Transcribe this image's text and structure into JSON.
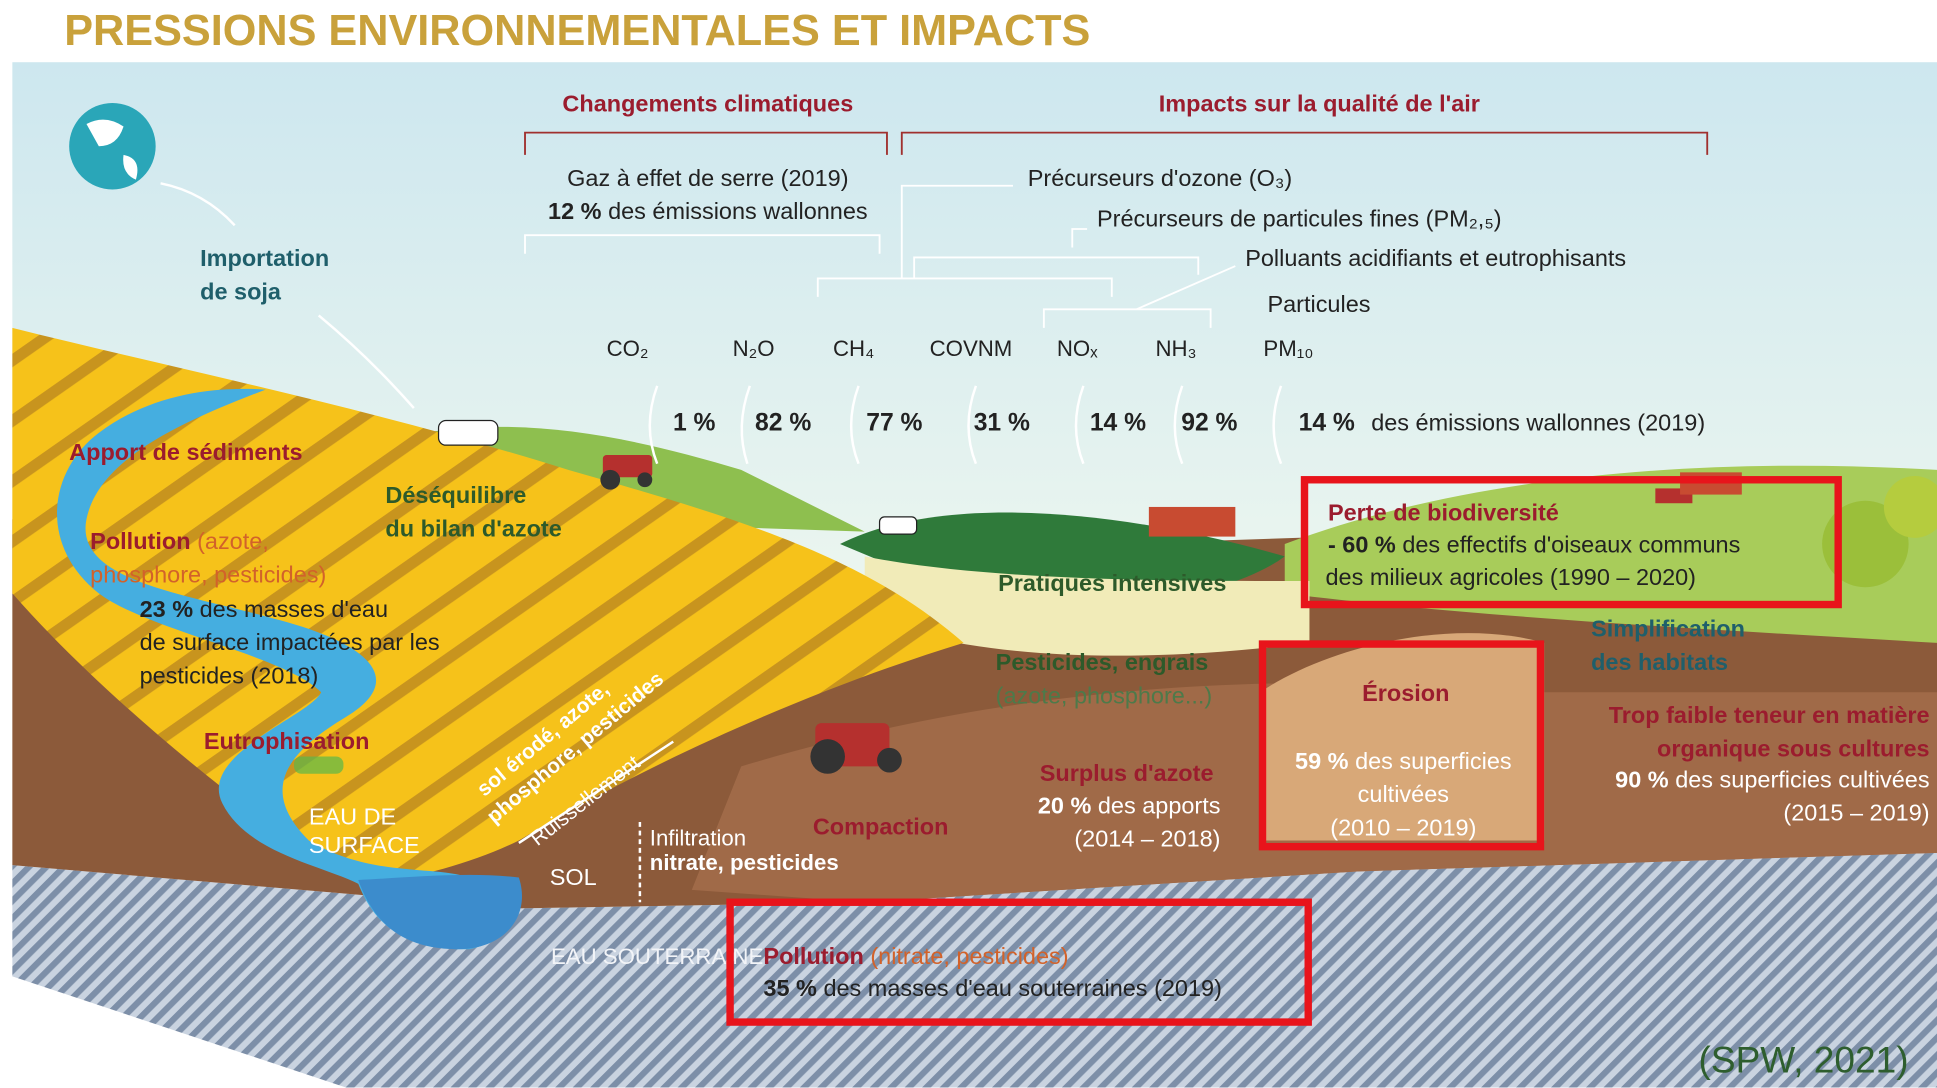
{
  "title": "PRESSIONS ENVIRONNEMENTALES ET IMPACTS",
  "sections": {
    "climate": "Changements climatiques",
    "air": "Impacts sur la qualité de l'air"
  },
  "groups": {
    "ghg": {
      "label": "Gaz à effet de serre (2019)",
      "value": "12 %",
      "text": "des émissions wallonnes"
    },
    "ozone": "Précurseurs d'ozone (O₃)",
    "fine_particles": "Précurseurs de particules fines (PM₂,₅)",
    "acidifying": "Polluants acidifiants et eutrophisants",
    "particles": "Particules"
  },
  "emissions": [
    {
      "gas": "CO₂",
      "share": "1 %"
    },
    {
      "gas": "N₂O",
      "share": "82 %"
    },
    {
      "gas": "CH₄",
      "share": "77 %"
    },
    {
      "gas": "COVNM",
      "share": "31 %"
    },
    {
      "gas": "NOₓ",
      "share": "14 %"
    },
    {
      "gas": "NH₃",
      "share": "92 %"
    },
    {
      "gas": "PM₁₀",
      "share": "14 %"
    }
  ],
  "emissions_note": "des émissions wallonnes (2019)",
  "labels": {
    "soy": [
      "Importation",
      "de soja"
    ],
    "sediments": "Apport de sédiments",
    "nitrogen_balance": [
      "Déséquilibre",
      "du bilan d'azote"
    ],
    "surface_pollution": {
      "title": "Pollution",
      "detail": [
        "(azote,",
        "phosphore, pesticides)"
      ],
      "value": "23 %",
      "text": [
        "des masses d'eau",
        "de surface impactées par les",
        "pesticides (2018)"
      ]
    },
    "eutrophication": "Eutrophisation",
    "surface_water": [
      "EAU DE",
      "SURFACE"
    ],
    "runoff_load": [
      "sol érodé, azote,",
      "phosphore, pesticides"
    ],
    "runoff": "Ruissellement",
    "soil": "SOL",
    "infiltration": {
      "title": "Infiltration",
      "detail": "nitrate, pesticides"
    },
    "compaction": "Compaction",
    "pesticides": {
      "title": "Pesticides, engrais",
      "detail": "(azote, phosphore...)"
    },
    "nitrogen_surplus": {
      "title": "Surplus d'azote",
      "value": "20 %",
      "text": "des apports",
      "period": "(2014 – 2018)"
    },
    "intensive": "Pratiques intensives",
    "biodiversity": {
      "title": "Perte de biodiversité",
      "value": "- 60 %",
      "text": [
        "des effectifs d'oiseaux communs",
        "des milieux agricoles (1990 – 2020)"
      ]
    },
    "habitats": [
      "Simplification",
      "des habitats"
    ],
    "erosion": {
      "title": "Érosion",
      "value": "59 %",
      "text": [
        "des superficies",
        "cultivées",
        "(2010 – 2019)"
      ]
    },
    "organic_matter": {
      "title": [
        "Trop faible teneur en matière",
        "organique sous cultures"
      ],
      "value": "90 %",
      "text": "des superficies cultivées",
      "period": "(2015 – 2019)"
    },
    "groundwater": "EAU SOUTERRAINE",
    "groundwater_pollution": {
      "title": "Pollution",
      "detail": "(nitrate, pesticides)",
      "value": "35 %",
      "text": "des masses d'eau souterraines (2019)"
    }
  },
  "source": "(SPW, 2021)"
}
